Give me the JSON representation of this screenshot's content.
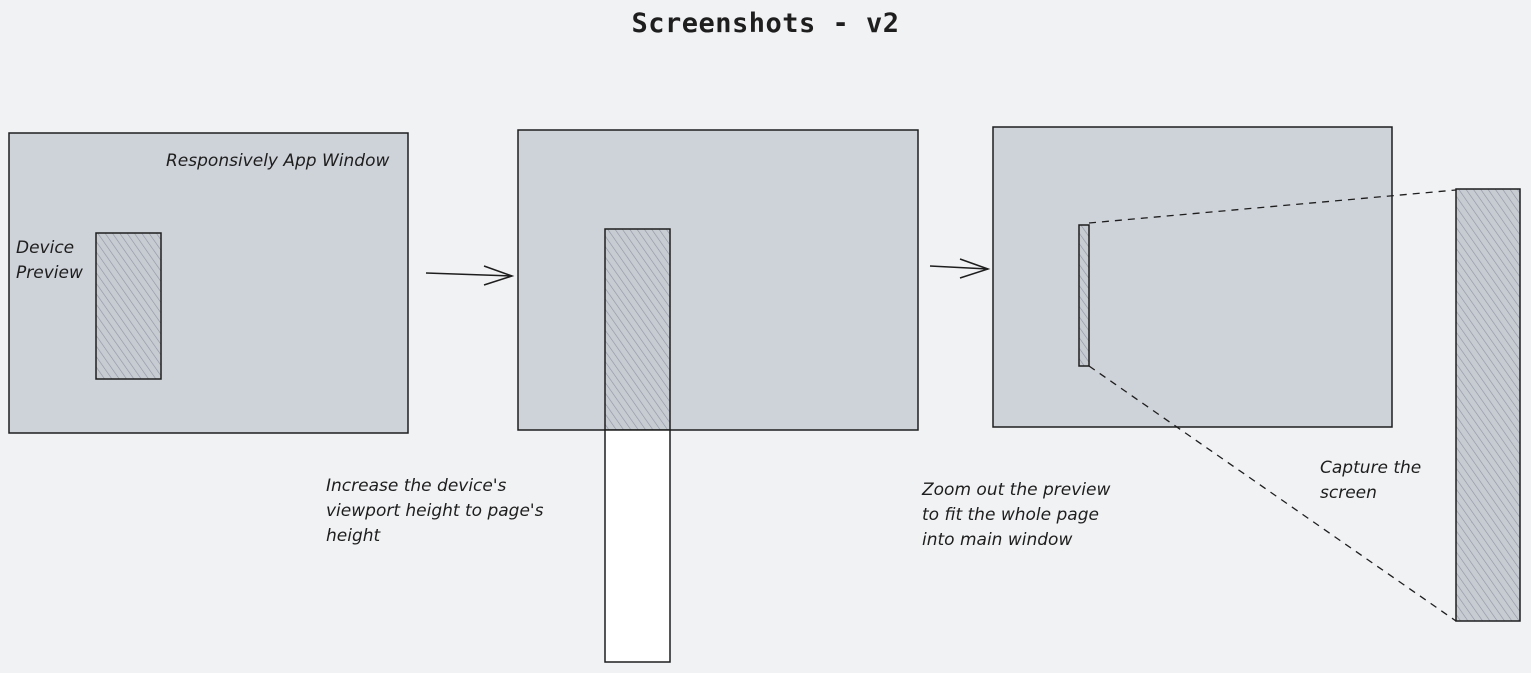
{
  "title": "Screenshots - v2",
  "labels": {
    "app_window": "Responsively App Window",
    "device_preview": [
      "Device",
      "Preview"
    ],
    "increase_height": [
      "Increase the device's",
      "viewport height to page's",
      "height"
    ],
    "zoom_out": [
      "Zoom out the preview",
      "to fit the whole page",
      "into main window"
    ],
    "capture": [
      "Capture the",
      "screen"
    ]
  },
  "colors": {
    "background": "#f1f2f4",
    "window_fill": "#ced2d9",
    "stroke": "#1e1e1e",
    "preview_hatch": "#9aa0aa",
    "extension_fill": "#ffffff"
  }
}
